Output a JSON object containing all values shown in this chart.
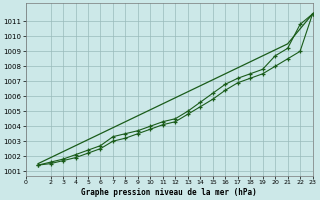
{
  "title": "Graphe pression niveau de la mer (hPa)",
  "background_color": "#cce8e8",
  "grid_color": "#99bbbb",
  "line_color": "#1a5c1a",
  "ylim_min": 1001,
  "ylim_max": 1012,
  "xlim_min": 0,
  "xlim_max": 23,
  "yticks": [
    1001,
    1002,
    1003,
    1004,
    1005,
    1006,
    1007,
    1008,
    1009,
    1010,
    1011
  ],
  "xticks": [
    0,
    2,
    3,
    4,
    5,
    6,
    7,
    8,
    9,
    10,
    11,
    12,
    13,
    14,
    15,
    16,
    17,
    18,
    19,
    20,
    21,
    22,
    23
  ],
  "x_data": [
    1,
    2,
    3,
    4,
    5,
    6,
    7,
    8,
    9,
    10,
    11,
    12,
    13,
    14,
    15,
    16,
    17,
    18,
    19,
    20,
    21,
    22,
    23
  ],
  "line_straight": [
    1001.5,
    1001.9,
    1002.3,
    1002.7,
    1003.1,
    1003.5,
    1003.9,
    1004.3,
    1004.7,
    1005.1,
    1005.5,
    1005.9,
    1006.3,
    1006.7,
    1007.1,
    1007.5,
    1007.9,
    1008.3,
    1008.7,
    1009.1,
    1009.5,
    1010.5,
    1011.5
  ],
  "line_upper": [
    1001.4,
    1001.6,
    1001.8,
    1002.1,
    1002.4,
    1002.7,
    1003.3,
    1003.5,
    1003.7,
    1004.0,
    1004.3,
    1004.5,
    1005.0,
    1005.6,
    1006.2,
    1006.8,
    1007.2,
    1007.5,
    1007.8,
    1008.7,
    1009.2,
    1010.8,
    1011.5
  ],
  "line_lower": [
    1001.4,
    1001.5,
    1001.7,
    1001.9,
    1002.2,
    1002.5,
    1003.0,
    1003.2,
    1003.5,
    1003.8,
    1004.1,
    1004.3,
    1004.8,
    1005.3,
    1005.8,
    1006.4,
    1006.9,
    1007.2,
    1007.5,
    1008.0,
    1008.5,
    1009.0,
    1011.5
  ]
}
